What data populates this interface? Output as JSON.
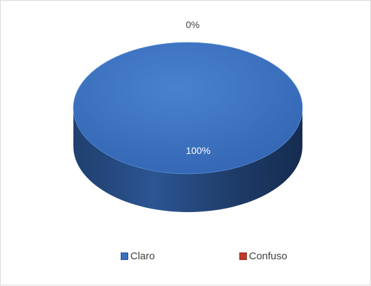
{
  "chart_data": {
    "type": "pie",
    "title": "",
    "categories": [
      "Claro",
      "Confuso"
    ],
    "values": [
      100,
      0
    ],
    "data_labels": [
      "100%",
      "0%"
    ],
    "colors": [
      "#3a6fbf",
      "#c0392b"
    ],
    "legend_position": "bottom",
    "style": "3d"
  }
}
